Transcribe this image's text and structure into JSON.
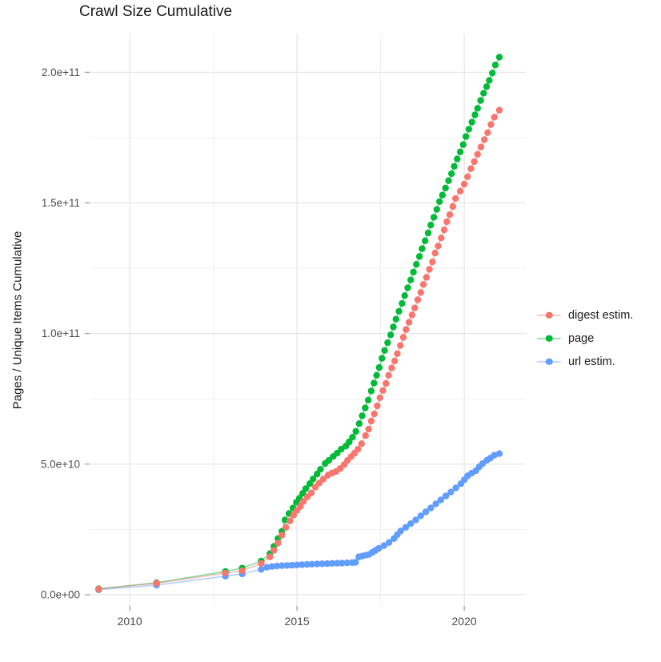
{
  "chart": {
    "title": "Crawl Size Cumulative",
    "ylabel": "Pages / Unique Items Cumulative"
  },
  "chart_data": {
    "type": "scatter",
    "title": "Crawl Size Cumulative",
    "xlabel": "",
    "ylabel": "Pages / Unique Items Cumulative",
    "grid": true,
    "legend_position": "right-center",
    "x_unit": "year",
    "y_unit": "pages / unique items (values stored in billions, 1e9)",
    "xlim": [
      2008.8,
      2021.84
    ],
    "ylim_billions": [
      -4.3,
      214.8
    ],
    "x_major_ticks": [
      {
        "value": 2010,
        "label": "2010"
      },
      {
        "value": 2015,
        "label": "2015"
      },
      {
        "value": 2020,
        "label": "2020"
      }
    ],
    "x_minor_ticks": [
      2012.5,
      2017.5
    ],
    "y_major_ticks": [
      {
        "value_billions": 0,
        "label": "0.0e+00"
      },
      {
        "value_billions": 50,
        "label": "5.0e+10"
      },
      {
        "value_billions": 100,
        "label": "1.0e+11"
      },
      {
        "value_billions": 150,
        "label": "1.5e+11"
      },
      {
        "value_billions": 200,
        "label": "2.0e+11"
      }
    ],
    "y_minor_ticks": [
      25,
      75,
      125,
      175
    ],
    "colors": {
      "digest_estim": "#F8766D",
      "page": "#00BA38",
      "url_estim": "#619CFF",
      "grid_major": "#E5E5E5",
      "grid_minor": "#F1F1F1",
      "tick": "#9a9a9a",
      "tick_label": "#4d4d4d"
    },
    "series": [
      {
        "name": "digest estim.",
        "color": "#F8766D",
        "points": [
          [
            2009.07,
            2.2
          ],
          [
            2010.8,
            4.4
          ],
          [
            2012.86,
            8.3
          ],
          [
            2013.36,
            9.2
          ],
          [
            2013.93,
            12.0
          ],
          [
            2014.19,
            14.5
          ],
          [
            2014.31,
            17.0
          ],
          [
            2014.43,
            19.8
          ],
          [
            2014.55,
            22.8
          ],
          [
            2014.67,
            25.8
          ],
          [
            2014.79,
            28.3
          ],
          [
            2014.9,
            30.5
          ],
          [
            2015.0,
            32.3
          ],
          [
            2015.1,
            33.8
          ],
          [
            2015.19,
            35.7
          ],
          [
            2015.31,
            37.5
          ],
          [
            2015.43,
            39.0
          ],
          [
            2015.55,
            41.2
          ],
          [
            2015.67,
            42.8
          ],
          [
            2015.79,
            44.3
          ],
          [
            2015.93,
            45.8
          ],
          [
            2016.05,
            46.6
          ],
          [
            2016.17,
            47.2
          ],
          [
            2016.29,
            48.3
          ],
          [
            2016.41,
            49.8
          ],
          [
            2016.51,
            51.4
          ],
          [
            2016.62,
            52.9
          ],
          [
            2016.72,
            54.2
          ],
          [
            2016.82,
            55.7
          ],
          [
            2016.93,
            57.8
          ],
          [
            2017.05,
            60.9
          ],
          [
            2017.14,
            63.4
          ],
          [
            2017.22,
            66.5
          ],
          [
            2017.31,
            69.2
          ],
          [
            2017.4,
            72.3
          ],
          [
            2017.48,
            75.4
          ],
          [
            2017.57,
            78.2
          ],
          [
            2017.66,
            80.9
          ],
          [
            2017.74,
            84.0
          ],
          [
            2017.83,
            86.8
          ],
          [
            2017.92,
            89.5
          ],
          [
            2018.0,
            92.3
          ],
          [
            2018.09,
            95.4
          ],
          [
            2018.18,
            98.5
          ],
          [
            2018.26,
            101.5
          ],
          [
            2018.35,
            104.3
          ],
          [
            2018.44,
            107.1
          ],
          [
            2018.52,
            109.8
          ],
          [
            2018.61,
            112.9
          ],
          [
            2018.7,
            115.7
          ],
          [
            2018.78,
            118.8
          ],
          [
            2018.87,
            121.5
          ],
          [
            2018.96,
            124.6
          ],
          [
            2019.05,
            127.4
          ],
          [
            2019.13,
            130.8
          ],
          [
            2019.22,
            133.5
          ],
          [
            2019.31,
            136.6
          ],
          [
            2019.4,
            139.7
          ],
          [
            2019.48,
            142.8
          ],
          [
            2019.57,
            145.5
          ],
          [
            2019.66,
            148.6
          ],
          [
            2019.74,
            151.7
          ],
          [
            2019.88,
            154.5
          ],
          [
            2020.0,
            157.2
          ],
          [
            2020.1,
            160.0
          ],
          [
            2020.2,
            163.1
          ],
          [
            2020.3,
            165.8
          ],
          [
            2020.4,
            168.6
          ],
          [
            2020.5,
            171.4
          ],
          [
            2020.6,
            174.2
          ],
          [
            2020.7,
            176.9
          ],
          [
            2020.8,
            180.0
          ],
          [
            2020.9,
            182.8
          ],
          [
            2021.05,
            185.5
          ]
        ]
      },
      {
        "name": "page",
        "color": "#00BA38",
        "points": [
          [
            2009.07,
            2.3
          ],
          [
            2010.8,
            4.6
          ],
          [
            2012.86,
            8.9
          ],
          [
            2013.36,
            10.2
          ],
          [
            2013.93,
            12.9
          ],
          [
            2014.19,
            15.7
          ],
          [
            2014.31,
            18.5
          ],
          [
            2014.43,
            21.5
          ],
          [
            2014.55,
            24.3
          ],
          [
            2014.64,
            28.6
          ],
          [
            2014.76,
            31.1
          ],
          [
            2014.88,
            33.2
          ],
          [
            2014.98,
            35.4
          ],
          [
            2015.07,
            36.9
          ],
          [
            2015.17,
            38.8
          ],
          [
            2015.26,
            40.6
          ],
          [
            2015.38,
            42.5
          ],
          [
            2015.48,
            44.3
          ],
          [
            2015.6,
            46.2
          ],
          [
            2015.7,
            48.0
          ],
          [
            2015.84,
            50.2
          ],
          [
            2015.95,
            51.4
          ],
          [
            2016.08,
            52.9
          ],
          [
            2016.2,
            54.2
          ],
          [
            2016.32,
            55.7
          ],
          [
            2016.46,
            56.9
          ],
          [
            2016.56,
            58.5
          ],
          [
            2016.66,
            60.3
          ],
          [
            2016.76,
            62.5
          ],
          [
            2016.86,
            65.5
          ],
          [
            2016.95,
            68.5
          ],
          [
            2017.04,
            71.5
          ],
          [
            2017.13,
            74.5
          ],
          [
            2017.22,
            78.0
          ],
          [
            2017.3,
            81.0
          ],
          [
            2017.38,
            84.0
          ],
          [
            2017.46,
            87.0
          ],
          [
            2017.54,
            90.5
          ],
          [
            2017.62,
            93.5
          ],
          [
            2017.71,
            96.5
          ],
          [
            2017.8,
            99.5
          ],
          [
            2017.88,
            102.5
          ],
          [
            2017.96,
            105.5
          ],
          [
            2018.05,
            108.5
          ],
          [
            2018.14,
            111.5
          ],
          [
            2018.22,
            114.5
          ],
          [
            2018.31,
            117.5
          ],
          [
            2018.4,
            120.5
          ],
          [
            2018.48,
            123.5
          ],
          [
            2018.57,
            126.5
          ],
          [
            2018.66,
            129.5
          ],
          [
            2018.74,
            132.5
          ],
          [
            2018.83,
            135.5
          ],
          [
            2018.92,
            138.5
          ],
          [
            2019.0,
            141.5
          ],
          [
            2019.09,
            144.5
          ],
          [
            2019.18,
            147.5
          ],
          [
            2019.26,
            150.5
          ],
          [
            2019.35,
            153.0
          ],
          [
            2019.44,
            155.7
          ],
          [
            2019.53,
            158.5
          ],
          [
            2019.62,
            161.2
          ],
          [
            2019.7,
            164.0
          ],
          [
            2019.79,
            166.8
          ],
          [
            2019.88,
            169.5
          ],
          [
            2019.97,
            172.3
          ],
          [
            2020.05,
            175.4
          ],
          [
            2020.14,
            178.2
          ],
          [
            2020.23,
            180.9
          ],
          [
            2020.32,
            183.7
          ],
          [
            2020.4,
            186.2
          ],
          [
            2020.49,
            189.2
          ],
          [
            2020.58,
            192.0
          ],
          [
            2020.67,
            194.5
          ],
          [
            2020.75,
            196.9
          ],
          [
            2020.84,
            199.7
          ],
          [
            2020.93,
            202.8
          ],
          [
            2021.05,
            205.8
          ]
        ]
      },
      {
        "name": "url estim.",
        "color": "#619CFF",
        "points": [
          [
            2009.07,
            1.9
          ],
          [
            2010.8,
            3.7
          ],
          [
            2012.86,
            7.1
          ],
          [
            2013.36,
            8.0
          ],
          [
            2013.93,
            9.7
          ],
          [
            2014.1,
            10.5
          ],
          [
            2014.25,
            10.8
          ],
          [
            2014.4,
            11.0
          ],
          [
            2014.55,
            11.1
          ],
          [
            2014.7,
            11.2
          ],
          [
            2014.85,
            11.3
          ],
          [
            2015.0,
            11.4
          ],
          [
            2015.15,
            11.5
          ],
          [
            2015.3,
            11.6
          ],
          [
            2015.45,
            11.7
          ],
          [
            2015.6,
            11.8
          ],
          [
            2015.75,
            11.85
          ],
          [
            2015.9,
            11.9
          ],
          [
            2016.05,
            12.0
          ],
          [
            2016.2,
            12.05
          ],
          [
            2016.35,
            12.1
          ],
          [
            2016.5,
            12.2
          ],
          [
            2016.65,
            12.3
          ],
          [
            2016.75,
            12.4
          ],
          [
            2016.85,
            14.5
          ],
          [
            2016.95,
            14.8
          ],
          [
            2017.05,
            15.1
          ],
          [
            2017.15,
            15.4
          ],
          [
            2017.25,
            16.2
          ],
          [
            2017.35,
            17.0
          ],
          [
            2017.45,
            17.8
          ],
          [
            2017.6,
            18.8
          ],
          [
            2017.75,
            20.0
          ],
          [
            2017.9,
            21.5
          ],
          [
            2018.0,
            23.0
          ],
          [
            2018.1,
            24.4
          ],
          [
            2018.25,
            25.8
          ],
          [
            2018.4,
            27.2
          ],
          [
            2018.55,
            28.6
          ],
          [
            2018.7,
            30.2
          ],
          [
            2018.85,
            31.7
          ],
          [
            2019.0,
            33.2
          ],
          [
            2019.15,
            34.8
          ],
          [
            2019.3,
            36.3
          ],
          [
            2019.45,
            37.8
          ],
          [
            2019.6,
            39.3
          ],
          [
            2019.75,
            40.9
          ],
          [
            2019.9,
            42.5
          ],
          [
            2020.0,
            44.0
          ],
          [
            2020.1,
            45.5
          ],
          [
            2020.22,
            46.5
          ],
          [
            2020.35,
            47.5
          ],
          [
            2020.45,
            49.0
          ],
          [
            2020.55,
            50.2
          ],
          [
            2020.68,
            51.5
          ],
          [
            2020.78,
            52.3
          ],
          [
            2020.9,
            53.4
          ],
          [
            2021.05,
            54.0
          ]
        ]
      }
    ],
    "draw_order": [
      "url estim.",
      "page",
      "digest estim."
    ]
  }
}
